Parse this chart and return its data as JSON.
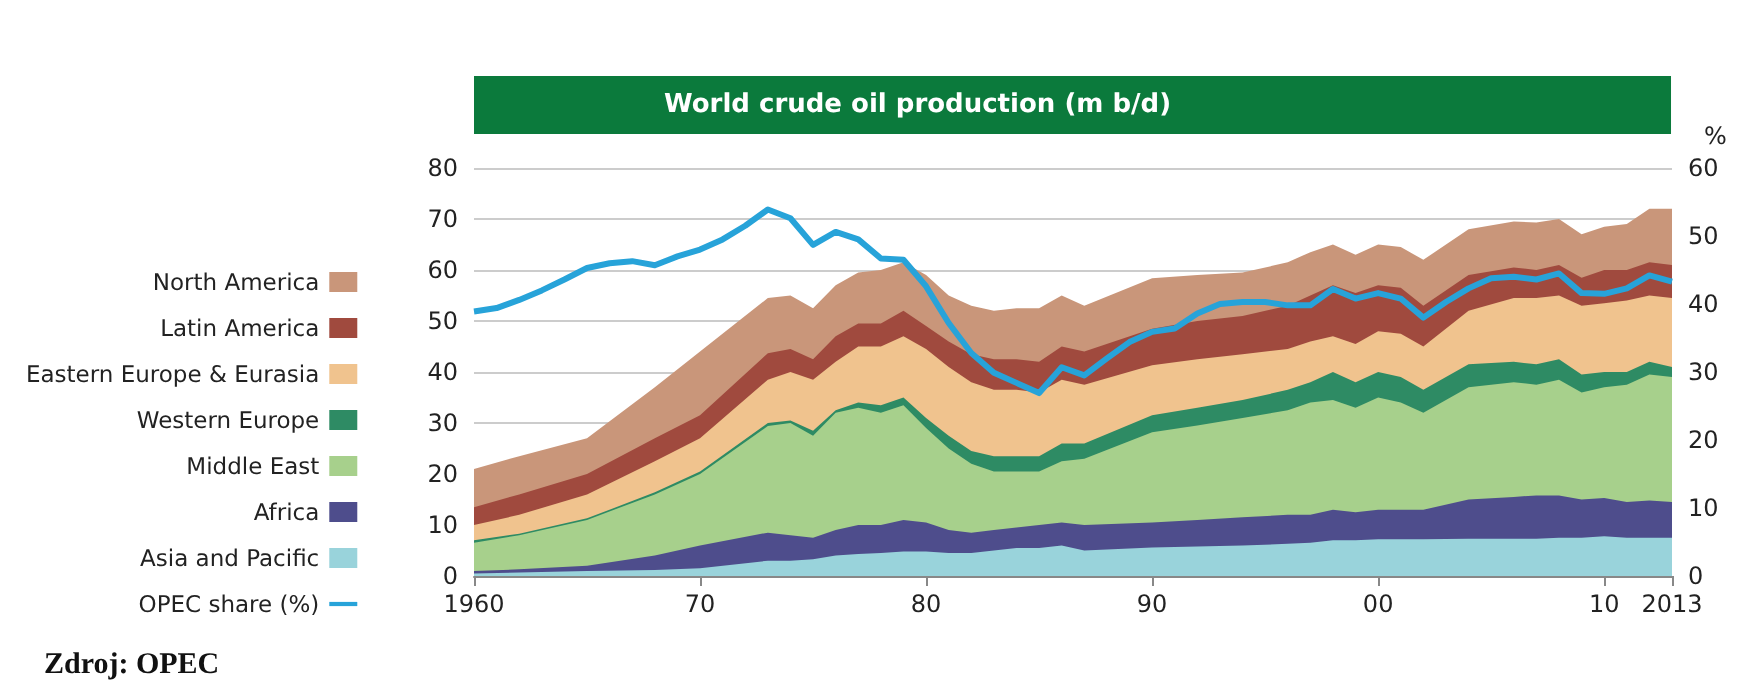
{
  "chart_data": {
    "type": "area",
    "stacked": true,
    "title": "World crude oil production (m b/d)",
    "y2label": "%",
    "annotations": [
      "Zdroj: OPEC"
    ],
    "legend": "left",
    "grid": "y",
    "x": [
      1960,
      1962,
      1965,
      1968,
      1970,
      1973,
      1974,
      1975,
      1976,
      1977,
      1978,
      1979,
      1980,
      1981,
      1982,
      1983,
      1984,
      1985,
      1986,
      1987,
      1990,
      1992,
      1994,
      1996,
      1997,
      1998,
      1999,
      2000,
      2001,
      2002,
      2004,
      2006,
      2007,
      2008,
      2009,
      2010,
      2011,
      2012,
      2013
    ],
    "xlim": [
      1960,
      2013
    ],
    "xticks": [
      {
        "value": 1960,
        "label": "1960"
      },
      {
        "value": 1970,
        "label": "70"
      },
      {
        "value": 1980,
        "label": "80"
      },
      {
        "value": 1990,
        "label": "90"
      },
      {
        "value": 2000,
        "label": "00"
      },
      {
        "value": 2010,
        "label": "10"
      },
      {
        "value": 2013,
        "label": "2013"
      }
    ],
    "ylim": [
      0,
      80
    ],
    "yticks": [
      0,
      10,
      20,
      30,
      40,
      50,
      60,
      70,
      80
    ],
    "y2lim": [
      0,
      60
    ],
    "y2ticks": [
      0,
      10,
      20,
      30,
      40,
      50,
      60
    ],
    "series": [
      {
        "name": "Asia and Pacific",
        "color": "#99d3db",
        "values": [
          0.5,
          0.7,
          1,
          1.2,
          1.5,
          3,
          3,
          3.3,
          4,
          4.3,
          4.5,
          4.8,
          4.8,
          4.5,
          4.5,
          5,
          5.5,
          5.5,
          6,
          5,
          5.6,
          5.8,
          6,
          6.3,
          6.5,
          7,
          7,
          7.2,
          7.2,
          7.2,
          7.3,
          7.3,
          7.3,
          7.5,
          7.5,
          7.8,
          7.5,
          7.5,
          7.5
        ]
      },
      {
        "name": "Africa",
        "color": "#4e4d8c",
        "values": [
          0.5,
          0.6,
          1,
          2.8,
          4.5,
          5.5,
          5,
          4.2,
          5,
          5.7,
          5.5,
          6.2,
          5.7,
          4.5,
          4,
          4,
          4,
          4.5,
          4.5,
          5,
          4.9,
          5.2,
          5.5,
          5.7,
          5.5,
          6,
          5.5,
          5.8,
          5.8,
          5.8,
          7.7,
          8.2,
          8.5,
          8.3,
          7.5,
          7.5,
          7,
          7.3,
          7
        ]
      },
      {
        "name": "Middle East",
        "color": "#a7d08c",
        "values": [
          5.5,
          6.7,
          9,
          12,
          14,
          20.9,
          22,
          20,
          23,
          23,
          22,
          22.5,
          18.5,
          16,
          13.5,
          11.5,
          11,
          10.5,
          12,
          13,
          17.7,
          18.5,
          19.5,
          20.5,
          22,
          21.5,
          20.5,
          22,
          21,
          19,
          22,
          22.5,
          21.7,
          22.7,
          21,
          21.7,
          23,
          24.7,
          24.5
        ]
      },
      {
        "name": "Western Europe",
        "color": "#2e8b64",
        "values": [
          0.5,
          0.3,
          0.3,
          0.4,
          0.5,
          0.6,
          0.5,
          1,
          0.5,
          1,
          1.5,
          1.5,
          2,
          2.5,
          2.5,
          3,
          3,
          3,
          3.5,
          3,
          3.3,
          3.5,
          3.5,
          4,
          4,
          5.5,
          5,
          5,
          5,
          4.5,
          4.5,
          4,
          4,
          4,
          3.5,
          3,
          2.5,
          2.5,
          2
        ]
      },
      {
        "name": "Eastern Europe & Eurasia",
        "color": "#f0c38e",
        "values": [
          3,
          3.7,
          4.7,
          6.1,
          6.5,
          8.5,
          9.5,
          10,
          9.5,
          11,
          11.5,
          12,
          13.5,
          13.5,
          13.5,
          13,
          13,
          12.5,
          12.5,
          11.5,
          9.8,
          9.5,
          9,
          8,
          8,
          7,
          7.5,
          8,
          8.5,
          8.5,
          10.5,
          12.5,
          13,
          12.5,
          13.5,
          13.5,
          14,
          13,
          13.5
        ]
      },
      {
        "name": "Latin America",
        "color": "#a04a3e",
        "values": [
          3.5,
          4,
          4,
          4.5,
          4.5,
          5.2,
          4.5,
          4,
          5,
          4.5,
          4.5,
          5,
          4.5,
          5,
          5.5,
          6,
          6,
          6,
          6.5,
          6.5,
          7.2,
          7.5,
          7.5,
          8.5,
          9,
          10,
          10,
          9,
          9,
          8,
          7,
          6,
          5.5,
          6,
          5.5,
          6.5,
          6,
          6.5,
          6.5
        ]
      },
      {
        "name": "North America",
        "color": "#c9967a",
        "values": [
          7.5,
          7.5,
          7,
          10,
          12.5,
          10.8,
          10.5,
          10,
          10,
          10,
          10.5,
          9.5,
          10,
          9,
          9.5,
          9.5,
          10,
          10.5,
          10,
          9,
          9.9,
          9,
          8.5,
          8.5,
          8.5,
          8,
          7.5,
          8,
          8,
          9,
          9,
          9,
          9.3,
          9,
          8.5,
          8.5,
          9,
          10.5,
          11
        ]
      },
      {
        "name": "OPEC share (%)",
        "type": "line",
        "axis": "y2",
        "color": "#27a3d9",
        "x": [
          1960,
          1961,
          1962,
          1963,
          1964,
          1965,
          1966,
          1967,
          1968,
          1969,
          1970,
          1971,
          1972,
          1973,
          1974,
          1975,
          1976,
          1977,
          1978,
          1979,
          1980,
          1981,
          1982,
          1983,
          1984,
          1985,
          1986,
          1987,
          1988,
          1989,
          1990,
          1991,
          1992,
          1993,
          1994,
          1995,
          1996,
          1997,
          1998,
          1999,
          2000,
          2001,
          2002,
          2003,
          2004,
          2005,
          2006,
          2007,
          2008,
          2009,
          2010,
          2011,
          2012,
          2013
        ],
        "values": [
          38.9,
          39.4,
          40.6,
          42,
          43.6,
          45.3,
          46,
          46.3,
          45.7,
          47,
          48,
          49.5,
          51.5,
          53.9,
          52.6,
          48.7,
          50.6,
          49.5,
          46.7,
          46.5,
          42.6,
          37.2,
          32.8,
          29.9,
          28.4,
          26.9,
          30.7,
          29.5,
          32,
          34.4,
          35.9,
          36.4,
          38.6,
          40,
          40.3,
          40.3,
          39.8,
          39.8,
          42.2,
          40.8,
          41.6,
          40.8,
          38,
          40.3,
          42.3,
          43.8,
          44,
          43.6,
          44.5,
          41.6,
          41.5,
          42.3,
          44.2,
          43.3
        ]
      }
    ]
  }
}
